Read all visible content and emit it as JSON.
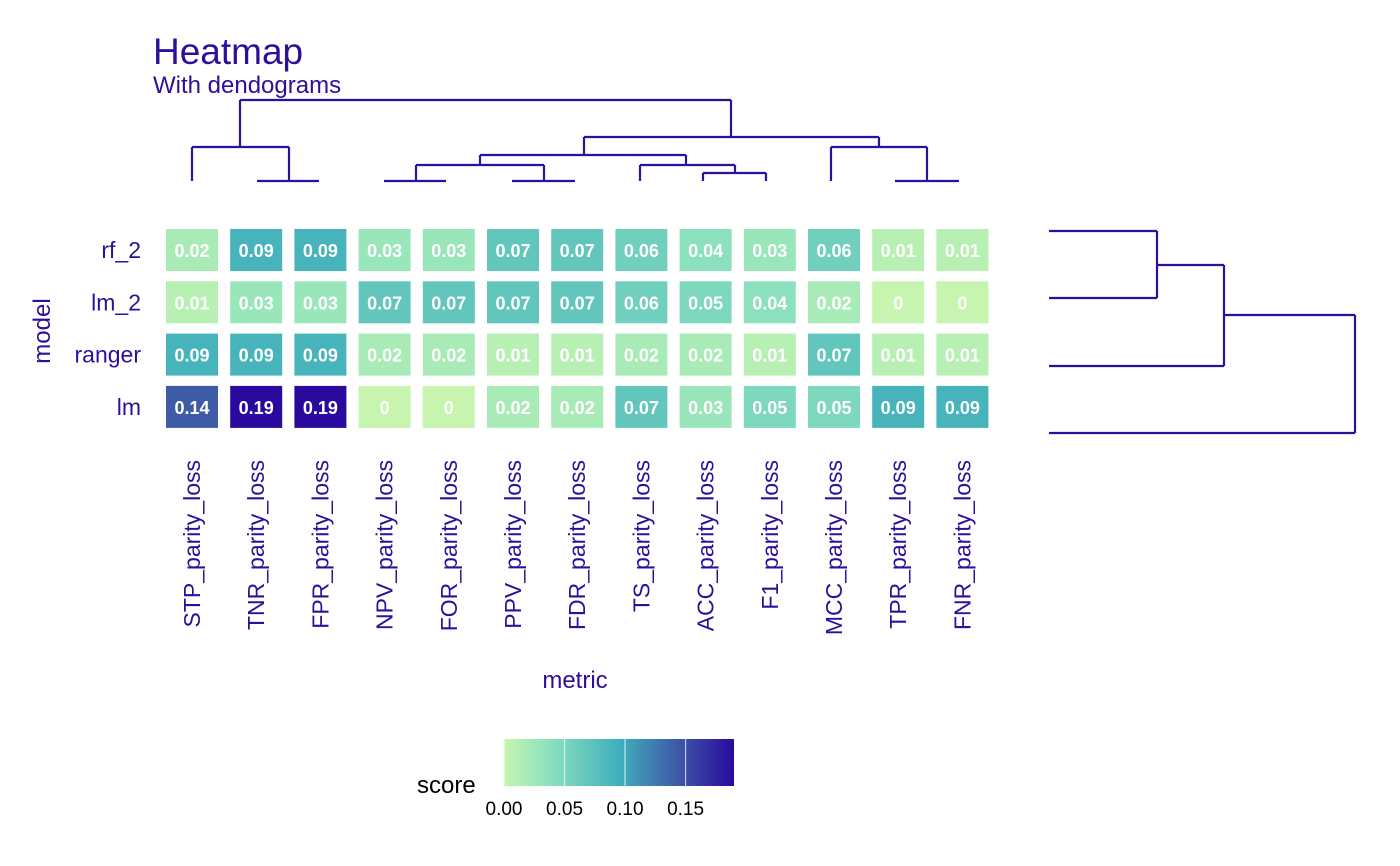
{
  "colors": {
    "accent": "#2E0F99",
    "dendrogram": "#2E0F99",
    "scale_low": "#C7F5B0",
    "scale_mid_1": "#8BE1BE",
    "scale_mid_2": "#40B0BC",
    "scale_mid_3": "#3E5BA8",
    "scale_high": "#2A0A9E"
  },
  "chart_data": {
    "type": "heatmap",
    "title": "Heatmap",
    "subtitle": "With dendograms",
    "xlabel": "metric",
    "ylabel": "model",
    "categories": [
      "STP_parity_loss",
      "TNR_parity_loss",
      "FPR_parity_loss",
      "NPV_parity_loss",
      "FOR_parity_loss",
      "PPV_parity_loss",
      "FDR_parity_loss",
      "TS_parity_loss",
      "ACC_parity_loss",
      "F1_parity_loss",
      "MCC_parity_loss",
      "TPR_parity_loss",
      "FNR_parity_loss"
    ],
    "rows": [
      "rf_2",
      "lm_2",
      "ranger",
      "lm"
    ],
    "values": [
      [
        0.02,
        0.09,
        0.09,
        0.03,
        0.03,
        0.07,
        0.07,
        0.06,
        0.04,
        0.03,
        0.06,
        0.01,
        0.01
      ],
      [
        0.01,
        0.03,
        0.03,
        0.07,
        0.07,
        0.07,
        0.07,
        0.06,
        0.05,
        0.04,
        0.02,
        0,
        0
      ],
      [
        0.09,
        0.09,
        0.09,
        0.02,
        0.02,
        0.01,
        0.01,
        0.02,
        0.02,
        0.01,
        0.07,
        0.01,
        0.01
      ],
      [
        0.14,
        0.19,
        0.19,
        0,
        0,
        0.02,
        0.02,
        0.07,
        0.03,
        0.05,
        0.05,
        0.09,
        0.09
      ]
    ],
    "labels": [
      [
        "0.02",
        "0.09",
        "0.09",
        "0.03",
        "0.03",
        "0.07",
        "0.07",
        "0.06",
        "0.04",
        "0.03",
        "0.06",
        "0.01",
        "0.01"
      ],
      [
        "0.01",
        "0.03",
        "0.03",
        "0.07",
        "0.07",
        "0.07",
        "0.07",
        "0.06",
        "0.05",
        "0.04",
        "0.02",
        "0",
        "0"
      ],
      [
        "0.09",
        "0.09",
        "0.09",
        "0.02",
        "0.02",
        "0.01",
        "0.01",
        "0.02",
        "0.02",
        "0.01",
        "0.07",
        "0.01",
        "0.01"
      ],
      [
        "0.14",
        "0.19",
        "0.19",
        "0",
        "0",
        "0.02",
        "0.02",
        "0.07",
        "0.03",
        "0.05",
        "0.05",
        "0.09",
        "0.09"
      ]
    ],
    "legend": {
      "title": "score",
      "position": "bottom",
      "ticks": [
        "0.00",
        "0.05",
        "0.10",
        "0.15"
      ],
      "range": [
        0,
        0.19
      ]
    },
    "dendrogram_top": true,
    "dendrogram_right": true
  }
}
